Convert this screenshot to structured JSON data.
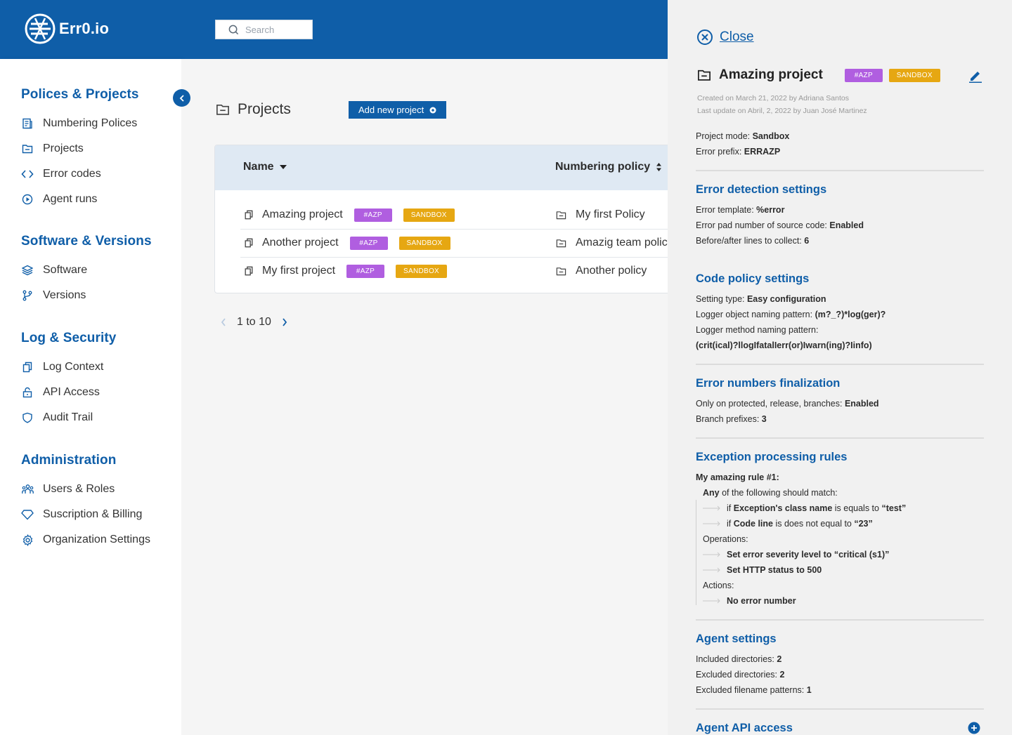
{
  "app": {
    "logo_text": "Err0.io",
    "colors": {
      "brand": "#0f5ea8",
      "azp_badge": "#b05ee0",
      "sandbox_badge": "#e6a712"
    }
  },
  "search": {
    "placeholder": "Search",
    "icon": "search-icon"
  },
  "sidebar": {
    "sections": [
      {
        "title": "Polices & Projects",
        "items": [
          {
            "label": "Numbering Polices",
            "icon": "document-icon"
          },
          {
            "label": "Projects",
            "icon": "folder-icon"
          },
          {
            "label": "Error codes",
            "icon": "code-icon"
          },
          {
            "label": "Agent runs",
            "icon": "play-circle-icon"
          }
        ]
      },
      {
        "title": "Software & Versions",
        "items": [
          {
            "label": "Software",
            "icon": "layers-icon"
          },
          {
            "label": "Versions",
            "icon": "branch-icon"
          }
        ]
      },
      {
        "title": "Log & Security",
        "items": [
          {
            "label": "Log Context",
            "icon": "copy-icon"
          },
          {
            "label": "API Access",
            "icon": "lock-icon"
          },
          {
            "label": "Audit Trail",
            "icon": "shield-icon"
          }
        ]
      },
      {
        "title": "Administration",
        "items": [
          {
            "label": "Users & Roles",
            "icon": "users-icon"
          },
          {
            "label": "Suscription & Billing",
            "icon": "diamond-icon"
          },
          {
            "label": "Organization Settings",
            "icon": "gear-icon"
          }
        ]
      }
    ]
  },
  "main": {
    "title": "Projects",
    "add_button": "Add new project",
    "table": {
      "columns": [
        "Name",
        "Numbering policy"
      ],
      "rows": [
        {
          "name": "Amazing project",
          "tag": "#AZP",
          "mode": "SANDBOX",
          "policy": "My first Policy"
        },
        {
          "name": "Another project",
          "tag": "#AZP",
          "mode": "SANDBOX",
          "policy": "Amazig team policy"
        },
        {
          "name": "My first project",
          "tag": "#AZP",
          "mode": "SANDBOX",
          "policy": "Another policy"
        }
      ]
    },
    "pager": {
      "label": "1 to 10"
    }
  },
  "panel": {
    "close": "Close",
    "title": "Amazing project",
    "tag": "#AZP",
    "mode": "SANDBOX",
    "created": "Created  on March 21, 2022 by Adriana Santos",
    "updated": "Last update on Abril, 2, 2022 by Juan José Martinez",
    "project_mode": {
      "label": "Project mode: ",
      "value": "Sandbox"
    },
    "error_prefix": {
      "label": "Error prefix: ",
      "value": "ERRAZP"
    },
    "detection": {
      "title": "Error detection settings",
      "template": {
        "label": "Error template: ",
        "value": "%error"
      },
      "pad": {
        "label": "Error pad number of source code: ",
        "value": "Enabled"
      },
      "lines": {
        "label": "Before/after lines to collect: ",
        "value": "6"
      }
    },
    "code_policy": {
      "title": "Code policy settings",
      "type": {
        "label": "Setting type: ",
        "value": "Easy configuration"
      },
      "object_pattern": {
        "label": "Logger object naming pattern: ",
        "value": "(m?_?)*log(ger)?"
      },
      "method_label": "Logger method naming pattern:",
      "method_value": "(crit(ical)?llogIfatalIerr(or)Iwarn(ing)?Iinfo)"
    },
    "finalization": {
      "title": "Error numbers finalization",
      "protected": {
        "label": "Only on protected, release, branches: ",
        "value": "Enabled"
      },
      "prefixes": {
        "label": "Branch prefixes: ",
        "value": "3"
      }
    },
    "exceptions": {
      "title": "Exception processing rules",
      "rule_name": "My amazing rule #1:",
      "match_bold": "Any",
      "match_rest": " of the following should match:",
      "cond1": {
        "pre": "if ",
        "field": "Exception's class name",
        "op": " is equals to ",
        "value": "“test”"
      },
      "cond2": {
        "pre": "if ",
        "field": "Code line",
        "op": " is does not equal to ",
        "value": "“23”"
      },
      "operations_label": "Operations:",
      "op1": "Set error severity level to “critical (s1)”",
      "op2": "Set HTTP status to 500",
      "actions_label": "Actions:",
      "act1": "No error number"
    },
    "agent": {
      "title": "Agent settings",
      "included": {
        "label": "Included directories: ",
        "value": "2"
      },
      "excluded": {
        "label": "Excluded directories: ",
        "value": "2"
      },
      "patterns": {
        "label": "Excluded filename patterns: ",
        "value": "1"
      }
    },
    "api_access": {
      "title": "Agent API access"
    }
  }
}
